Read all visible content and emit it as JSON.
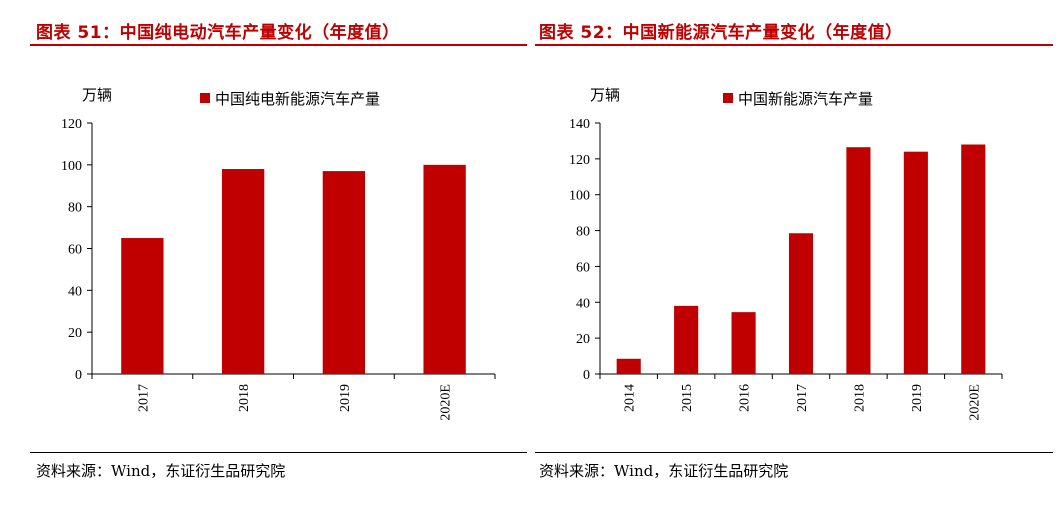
{
  "left": {
    "title": "图表 51：中国纯电动汽车产量变化（年度值）",
    "source": "资料来源：Wind，东证衍生品研究院",
    "colors": {
      "bar": "#c00000",
      "title": "#c00000"
    },
    "chart_data": {
      "type": "bar",
      "ylabel": "万辆",
      "ylim": [
        0,
        120
      ],
      "yticks": [
        "0",
        "20",
        "40",
        "60",
        "80",
        "100",
        "120"
      ],
      "categories": [
        "2017",
        "2018",
        "2019",
        "2020E"
      ],
      "series": [
        {
          "name": "中国纯电新能源汽车产量",
          "values": [
            65,
            98,
            97,
            100
          ]
        }
      ],
      "legend_position": "top"
    }
  },
  "right": {
    "title": "图表 52：中国新能源汽车产量变化（年度值）",
    "source": "资料来源：Wind，东证衍生品研究院",
    "colors": {
      "bar": "#c00000",
      "title": "#c00000"
    },
    "chart_data": {
      "type": "bar",
      "ylabel": "万辆",
      "ylim": [
        0,
        140
      ],
      "yticks": [
        "0",
        "20",
        "40",
        "60",
        "80",
        "100",
        "120",
        "140"
      ],
      "categories": [
        "2014",
        "2015",
        "2016",
        "2017",
        "2018",
        "2019",
        "2020E"
      ],
      "series": [
        {
          "name": "中国新能源汽车产量",
          "values": [
            8.5,
            38,
            34.5,
            78.5,
            126.5,
            124,
            128
          ]
        }
      ],
      "legend_position": "top"
    }
  }
}
